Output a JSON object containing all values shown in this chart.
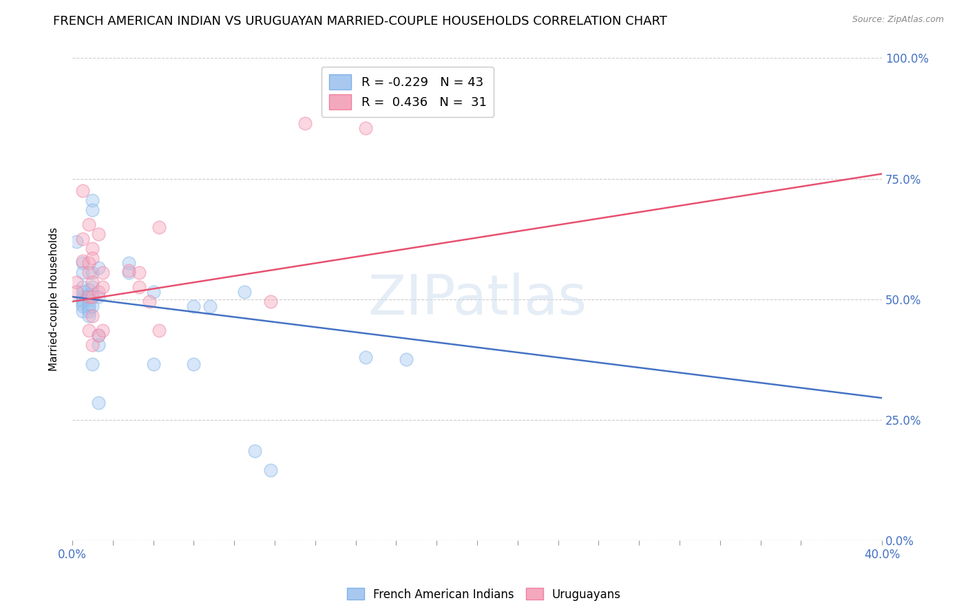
{
  "title": "FRENCH AMERICAN INDIAN VS URUGUAYAN MARRIED-COUPLE HOUSEHOLDS CORRELATION CHART",
  "source": "Source: ZipAtlas.com",
  "ylabel": "Married-couple Households",
  "xlabel_ticks_all": [
    "0.0%",
    "",
    "",
    "",
    "",
    "",
    "",
    "",
    "",
    "",
    "",
    "",
    "",
    "",
    "",
    "",
    "",
    "",
    "",
    "40.0%"
  ],
  "xlabel_vals_all": [
    0.0,
    0.02,
    0.04,
    0.06,
    0.08,
    0.1,
    0.12,
    0.14,
    0.16,
    0.18,
    0.2,
    0.22,
    0.24,
    0.26,
    0.28,
    0.3,
    0.32,
    0.34,
    0.36,
    0.4
  ],
  "ylabel_ticks": [
    "0.0%",
    "25.0%",
    "50.0%",
    "75.0%",
    "100.0%"
  ],
  "ylabel_vals": [
    0.0,
    0.25,
    0.5,
    0.75,
    1.0
  ],
  "xlim": [
    0.0,
    0.4
  ],
  "ylim": [
    0.0,
    1.0
  ],
  "watermark": "ZIPatlas",
  "legend_blue_r": "-0.229",
  "legend_blue_n": "43",
  "legend_pink_r": "0.436",
  "legend_pink_n": "31",
  "legend_labels": [
    "French American Indians",
    "Uruguayans"
  ],
  "blue_color": "#A8C8F0",
  "pink_color": "#F4A8BE",
  "blue_edge_color": "#7EB3E8",
  "pink_edge_color": "#F080A0",
  "blue_line_color": "#4472C4",
  "pink_line_color": "#E85070",
  "blue_scatter": [
    [
      0.002,
      0.62
    ],
    [
      0.005,
      0.575
    ],
    [
      0.005,
      0.555
    ],
    [
      0.005,
      0.525
    ],
    [
      0.005,
      0.515
    ],
    [
      0.005,
      0.505
    ],
    [
      0.005,
      0.5
    ],
    [
      0.005,
      0.495
    ],
    [
      0.005,
      0.49
    ],
    [
      0.005,
      0.485
    ],
    [
      0.005,
      0.475
    ],
    [
      0.008,
      0.52
    ],
    [
      0.008,
      0.51
    ],
    [
      0.008,
      0.505
    ],
    [
      0.008,
      0.498
    ],
    [
      0.008,
      0.49
    ],
    [
      0.008,
      0.482
    ],
    [
      0.008,
      0.475
    ],
    [
      0.008,
      0.465
    ],
    [
      0.01,
      0.705
    ],
    [
      0.01,
      0.685
    ],
    [
      0.01,
      0.555
    ],
    [
      0.01,
      0.525
    ],
    [
      0.01,
      0.505
    ],
    [
      0.01,
      0.485
    ],
    [
      0.01,
      0.365
    ],
    [
      0.013,
      0.565
    ],
    [
      0.013,
      0.505
    ],
    [
      0.013,
      0.425
    ],
    [
      0.013,
      0.405
    ],
    [
      0.013,
      0.285
    ],
    [
      0.028,
      0.575
    ],
    [
      0.028,
      0.555
    ],
    [
      0.04,
      0.515
    ],
    [
      0.04,
      0.365
    ],
    [
      0.06,
      0.485
    ],
    [
      0.06,
      0.365
    ],
    [
      0.068,
      0.485
    ],
    [
      0.085,
      0.515
    ],
    [
      0.09,
      0.185
    ],
    [
      0.098,
      0.145
    ],
    [
      0.145,
      0.38
    ],
    [
      0.165,
      0.375
    ]
  ],
  "pink_scatter": [
    [
      0.002,
      0.535
    ],
    [
      0.002,
      0.515
    ],
    [
      0.005,
      0.725
    ],
    [
      0.005,
      0.625
    ],
    [
      0.005,
      0.58
    ],
    [
      0.008,
      0.655
    ],
    [
      0.008,
      0.575
    ],
    [
      0.008,
      0.555
    ],
    [
      0.008,
      0.505
    ],
    [
      0.008,
      0.435
    ],
    [
      0.01,
      0.605
    ],
    [
      0.01,
      0.585
    ],
    [
      0.01,
      0.535
    ],
    [
      0.01,
      0.505
    ],
    [
      0.01,
      0.465
    ],
    [
      0.01,
      0.405
    ],
    [
      0.013,
      0.635
    ],
    [
      0.013,
      0.515
    ],
    [
      0.013,
      0.425
    ],
    [
      0.015,
      0.555
    ],
    [
      0.015,
      0.525
    ],
    [
      0.015,
      0.435
    ],
    [
      0.028,
      0.56
    ],
    [
      0.033,
      0.555
    ],
    [
      0.033,
      0.525
    ],
    [
      0.038,
      0.495
    ],
    [
      0.043,
      0.65
    ],
    [
      0.043,
      0.435
    ],
    [
      0.098,
      0.495
    ],
    [
      0.115,
      0.865
    ],
    [
      0.145,
      0.855
    ]
  ],
  "blue_line_x": [
    0.0,
    0.4
  ],
  "blue_line_y": [
    0.505,
    0.295
  ],
  "pink_line_x": [
    0.0,
    0.4
  ],
  "pink_line_y": [
    0.495,
    0.76
  ],
  "background_color": "#FFFFFF",
  "grid_color": "#CCCCCC",
  "title_fontsize": 13,
  "axis_label_fontsize": 11,
  "tick_fontsize": 12,
  "right_tick_color": "#4472C4",
  "scatter_size": 180,
  "scatter_alpha": 0.45,
  "line_width": 1.8
}
